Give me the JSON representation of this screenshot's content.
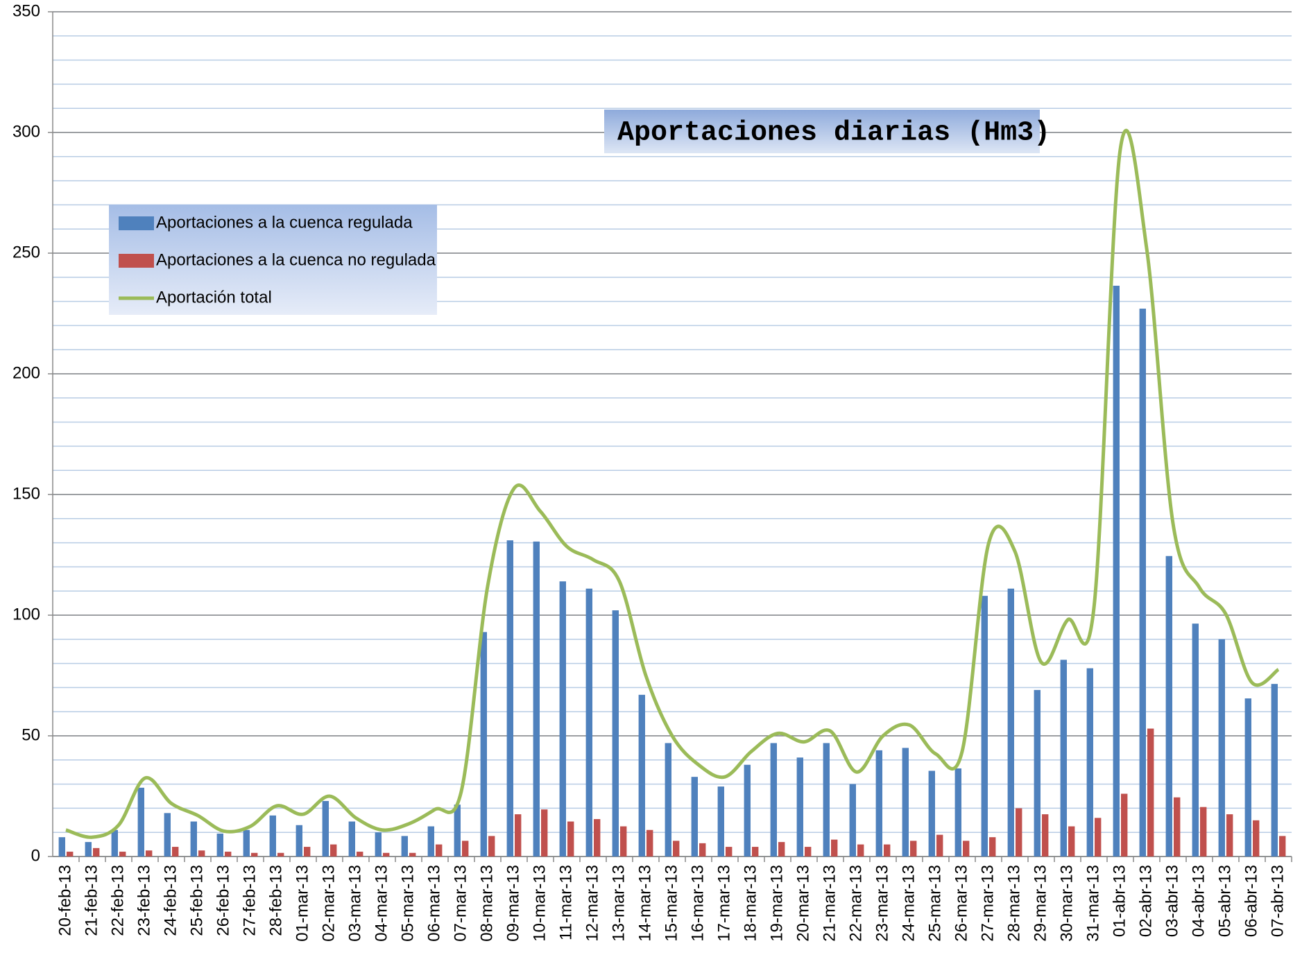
{
  "chart_data": {
    "type": "bar",
    "title": "Aportaciones diarias (Hm3)",
    "categories": [
      "20-feb-13",
      "21-feb-13",
      "22-feb-13",
      "23-feb-13",
      "24-feb-13",
      "25-feb-13",
      "26-feb-13",
      "27-feb-13",
      "28-feb-13",
      "01-mar-13",
      "02-mar-13",
      "03-mar-13",
      "04-mar-13",
      "05-mar-13",
      "06-mar-13",
      "07-mar-13",
      "08-mar-13",
      "09-mar-13",
      "10-mar-13",
      "11-mar-13",
      "12-mar-13",
      "13-mar-13",
      "14-mar-13",
      "15-mar-13",
      "16-mar-13",
      "17-mar-13",
      "18-mar-13",
      "19-mar-13",
      "20-mar-13",
      "21-mar-13",
      "22-mar-13",
      "23-mar-13",
      "24-mar-13",
      "25-mar-13",
      "26-mar-13",
      "27-mar-13",
      "28-mar-13",
      "29-mar-13",
      "30-mar-13",
      "31-mar-13",
      "01-abr-13",
      "02-abr-13",
      "03-abr-13",
      "04-abr-13",
      "05-abr-13",
      "06-abr-13",
      "07-abr-13"
    ],
    "series": [
      {
        "name": "Aportaciones a la cuenca regulada",
        "color": "#4f81bd",
        "type": "bar",
        "values": [
          8,
          6,
          11,
          28.5,
          18,
          14.5,
          9.5,
          11,
          17,
          13,
          23,
          14.5,
          10,
          8.5,
          12.5,
          21.5,
          93,
          131,
          130.5,
          114,
          111,
          102,
          67,
          47,
          33,
          29,
          38,
          47,
          41,
          47,
          30,
          44,
          45,
          35.5,
          36.5,
          108,
          111,
          69,
          81.5,
          78,
          236.5,
          227,
          124.5,
          96.5,
          90,
          65.5,
          71.5
        ]
      },
      {
        "name": "Aportaciones a la cuenca no regulada",
        "color": "#c0504d",
        "type": "bar",
        "values": [
          2,
          3.5,
          2,
          2.5,
          4,
          2.5,
          2,
          1.5,
          1.5,
          4,
          5,
          2,
          1.5,
          1.5,
          5,
          6.5,
          8.5,
          17.5,
          19.5,
          14.5,
          15.5,
          12.5,
          11,
          6.5,
          5.5,
          4,
          4,
          6,
          4,
          7,
          5,
          5,
          6.5,
          9,
          6.5,
          8,
          20,
          17.5,
          12.5,
          16,
          26,
          53,
          24.5,
          20.5,
          17.5,
          15,
          8.5
        ]
      },
      {
        "name": "Aportación total",
        "color": "#9bbb59",
        "type": "line",
        "values": [
          11,
          8,
          13,
          32.5,
          22,
          17,
          10.5,
          12.5,
          21,
          17.5,
          25,
          16,
          11,
          13.5,
          19.5,
          27,
          112,
          152.5,
          143,
          128.5,
          123,
          114,
          75,
          50,
          38,
          33,
          43.5,
          51,
          47.5,
          52,
          35,
          50,
          54.5,
          42.5,
          43.5,
          129.5,
          126.5,
          80.5,
          98,
          103,
          293,
          252,
          138,
          111.5,
          100.5,
          72,
          77.5
        ]
      }
    ],
    "ylim": [
      0,
      350
    ],
    "yticks": [
      0,
      50,
      100,
      150,
      200,
      250,
      300,
      350
    ],
    "minor_grid_step": 10,
    "grid": true
  }
}
